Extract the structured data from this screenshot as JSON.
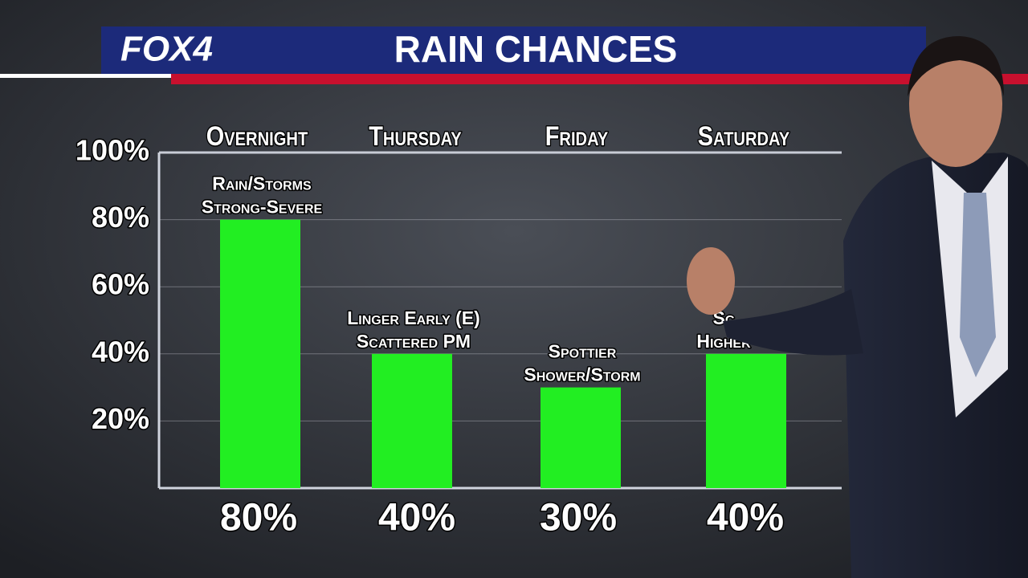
{
  "logo": "FOX4",
  "chart_data": {
    "type": "bar",
    "title": "RAIN CHANCES",
    "categories": [
      "Overnight",
      "Thursday",
      "Friday",
      "Saturday"
    ],
    "values": [
      80,
      40,
      30,
      40
    ],
    "value_labels": [
      "80%",
      "40%",
      "30%",
      "40%"
    ],
    "annotations": [
      [
        "Rain/Storms",
        "Strong-Severe"
      ],
      [
        "Linger Early (E)",
        "Scattered PM"
      ],
      [
        "Spottier",
        "Shower/Storm"
      ],
      [
        "Sc",
        "Higher"
      ]
    ],
    "color": "#22ee22",
    "ylim": [
      0,
      100
    ],
    "yticks": [
      {
        "value": 20,
        "label": "20%"
      },
      {
        "value": 40,
        "label": "40%"
      },
      {
        "value": 60,
        "label": "60%"
      },
      {
        "value": 80,
        "label": "80%"
      },
      {
        "value": 100,
        "label": "100%"
      }
    ],
    "grid": true
  }
}
